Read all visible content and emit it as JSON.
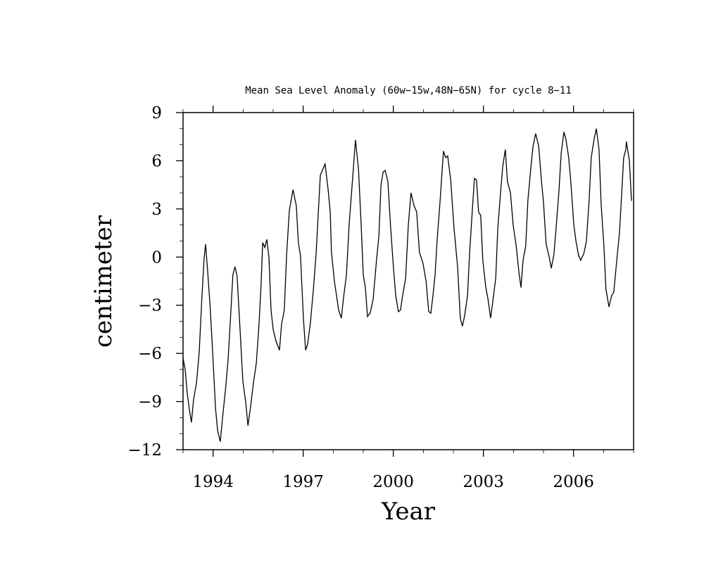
{
  "chart_data": {
    "type": "line",
    "title": "Mean Sea Level Anomaly (60w−15w,48N−65N) for cycle 8−11",
    "xlabel": "Year",
    "ylabel": "centimeter",
    "xlim": [
      1993.0,
      2008.0
    ],
    "ylim": [
      -12,
      9
    ],
    "x_ticks": [
      1994,
      1997,
      2000,
      2003,
      2006
    ],
    "x_tick_labels": [
      "1994",
      "1997",
      "2000",
      "2003",
      "2006"
    ],
    "y_ticks": [
      -12,
      -9,
      -6,
      -3,
      0,
      3,
      6,
      9
    ],
    "y_tick_labels": [
      "−12",
      "−9",
      "−6",
      "−3",
      "0",
      "3",
      "6",
      "9"
    ],
    "grid": false,
    "line_color": "#000000",
    "series": [
      {
        "name": "Mean Sea Level Anomaly",
        "x": [
          1993.0,
          1993.07,
          1993.14,
          1993.21,
          1993.28,
          1993.35,
          1993.45,
          1993.54,
          1993.63,
          1993.7,
          1993.75,
          1993.82,
          1993.91,
          1994.01,
          1994.08,
          1994.15,
          1994.24,
          1994.31,
          1994.41,
          1994.5,
          1994.59,
          1994.66,
          1994.73,
          1994.8,
          1994.9,
          1994.99,
          1995.09,
          1995.16,
          1995.25,
          1995.34,
          1995.44,
          1995.53,
          1995.6,
          1995.65,
          1995.72,
          1995.79,
          1995.86,
          1995.93,
          1996.0,
          1996.09,
          1996.21,
          1996.28,
          1996.37,
          1996.45,
          1996.54,
          1996.66,
          1996.77,
          1996.84,
          1996.91,
          1997.01,
          1997.08,
          1997.15,
          1997.24,
          1997.34,
          1997.43,
          1997.57,
          1997.73,
          1997.83,
          1997.9,
          1997.94,
          1998.04,
          1998.18,
          1998.27,
          1998.34,
          1998.44,
          1998.53,
          1998.67,
          1998.74,
          1998.84,
          1998.93,
          1999.0,
          1999.07,
          1999.14,
          1999.23,
          1999.33,
          1999.44,
          1999.52,
          1999.59,
          1999.66,
          1999.73,
          1999.82,
          1999.91,
          2000.01,
          2000.08,
          2000.17,
          2000.24,
          2000.31,
          2000.41,
          2000.5,
          2000.59,
          2000.69,
          2000.78,
          2000.87,
          2000.99,
          2001.09,
          2001.18,
          2001.25,
          2001.32,
          2001.39,
          2001.46,
          2001.55,
          2001.67,
          2001.74,
          2001.81,
          2001.91,
          2002.02,
          2002.14,
          2002.23,
          2002.3,
          2002.37,
          2002.47,
          2002.54,
          2002.63,
          2002.7,
          2002.77,
          2002.84,
          2002.91,
          2002.98,
          2003.08,
          2003.15,
          2003.24,
          2003.31,
          2003.41,
          2003.48,
          2003.57,
          2003.64,
          2003.73,
          2003.8,
          2003.9,
          2003.99,
          2004.09,
          2004.18,
          2004.25,
          2004.32,
          2004.41,
          2004.48,
          2004.58,
          2004.65,
          2004.74,
          2004.84,
          2004.93,
          2005.0,
          2005.09,
          2005.19,
          2005.26,
          2005.35,
          2005.42,
          2005.51,
          2005.59,
          2005.68,
          2005.75,
          2005.84,
          2005.91,
          2006.01,
          2006.08,
          2006.17,
          2006.24,
          2006.34,
          2006.43,
          2006.52,
          2006.59,
          2006.69,
          2006.76,
          2006.85,
          2006.92,
          2007.01,
          2007.08,
          2007.18,
          2007.27,
          2007.34,
          2007.44,
          2007.53,
          2007.6,
          2007.67,
          2007.74,
          2007.76,
          2007.86,
          2007.93
        ],
        "y": [
          -6.3,
          -7.0,
          -8.5,
          -9.5,
          -10.3,
          -8.9,
          -7.8,
          -5.9,
          -2.4,
          -0.1,
          0.8,
          -0.9,
          -3.3,
          -6.8,
          -9.4,
          -10.8,
          -11.5,
          -10.1,
          -8.3,
          -6.4,
          -3.5,
          -1.1,
          -0.6,
          -1.2,
          -4.6,
          -7.7,
          -9.1,
          -10.5,
          -9.3,
          -7.9,
          -6.6,
          -4.2,
          -1.7,
          0.9,
          0.6,
          1.1,
          0.0,
          -3.3,
          -4.5,
          -5.2,
          -5.8,
          -4.2,
          -3.3,
          0.2,
          2.9,
          4.2,
          3.2,
          0.9,
          0.1,
          -3.9,
          -5.8,
          -5.4,
          -4.1,
          -2.0,
          0.2,
          5.1,
          5.8,
          4.2,
          2.8,
          0.3,
          -1.5,
          -3.3,
          -3.8,
          -2.6,
          -1.1,
          2.0,
          5.5,
          7.3,
          5.5,
          2.0,
          -1.1,
          -1.9,
          -3.7,
          -3.5,
          -2.6,
          -0.2,
          1.3,
          4.5,
          5.3,
          5.4,
          4.7,
          1.9,
          -0.8,
          -2.4,
          -3.4,
          -3.3,
          -2.4,
          -1.3,
          2.0,
          4.0,
          3.2,
          2.8,
          0.3,
          -0.4,
          -1.5,
          -3.4,
          -3.5,
          -2.4,
          -1.1,
          1.1,
          3.3,
          6.6,
          6.2,
          6.3,
          4.8,
          1.8,
          -0.6,
          -3.8,
          -4.3,
          -3.7,
          -2.4,
          0.2,
          2.9,
          4.9,
          4.8,
          2.8,
          2.6,
          -0.2,
          -1.9,
          -2.6,
          -3.8,
          -2.8,
          -1.3,
          1.8,
          4.0,
          5.6,
          6.7,
          4.7,
          4.0,
          2.0,
          0.7,
          -0.9,
          -1.9,
          -0.2,
          0.7,
          3.5,
          5.6,
          6.9,
          7.7,
          6.9,
          4.8,
          3.4,
          0.8,
          0.0,
          -0.7,
          0.2,
          1.8,
          4.0,
          6.5,
          7.8,
          7.3,
          6.2,
          4.7,
          2.0,
          1.0,
          0.1,
          -0.2,
          0.2,
          1.0,
          3.6,
          6.2,
          7.4,
          8.0,
          6.7,
          3.3,
          0.7,
          -2.0,
          -3.1,
          -2.4,
          -2.2,
          -0.2,
          1.5,
          3.8,
          6.2,
          6.7,
          7.2,
          6.0,
          3.5
        ]
      }
    ]
  }
}
